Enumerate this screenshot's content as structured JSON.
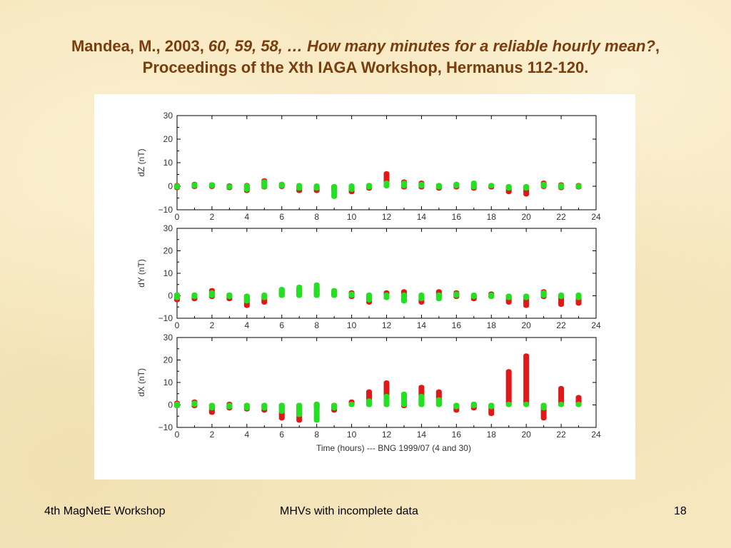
{
  "title": {
    "line1_prefix": "Mandea, M., 2003, ",
    "line1_italic": "60, 59, 58, … How many minutes for a reliable hourly mean?",
    "line1_suffix": ",",
    "line2": "Proceedings of the Xth IAGA Workshop, Hermanus 112-120."
  },
  "footer": {
    "left": "4th MagNetE Workshop",
    "center": "MHVs with incomplete data",
    "right": "18"
  },
  "colors": {
    "red_series": "#e01818",
    "green_series": "#22e022",
    "title": "#7a3d0e",
    "background": "#f6e7bf"
  },
  "chart_data": [
    {
      "type": "scatter",
      "ylabel": "dZ (nT)",
      "xlabel": "",
      "xlim": [
        0,
        24
      ],
      "ylim": [
        -10,
        30
      ],
      "xticks": [
        0,
        2,
        4,
        6,
        8,
        10,
        12,
        14,
        16,
        18,
        20,
        22,
        24
      ],
      "yticks": [
        -10,
        0,
        10,
        20,
        30
      ],
      "grid": false,
      "series": [
        {
          "color": "red",
          "x": [
            0,
            1,
            2,
            3,
            4,
            5,
            6,
            7,
            8,
            9,
            10,
            11,
            12,
            13,
            14,
            15,
            16,
            17,
            18,
            19,
            20,
            21,
            22,
            23
          ],
          "ranges": [
            [
              -0.8,
              0.5
            ],
            [
              -0.3,
              1.0
            ],
            [
              -0.3,
              0.8
            ],
            [
              -0.8,
              0.3
            ],
            [
              -2.0,
              0.5
            ],
            [
              -0.5,
              2.5
            ],
            [
              -0.3,
              1.0
            ],
            [
              -2.0,
              0.0
            ],
            [
              -2.0,
              0.0
            ],
            [
              -1.5,
              0.0
            ],
            [
              -2.5,
              0.0
            ],
            [
              -1.0,
              0.5
            ],
            [
              0.0,
              5.5
            ],
            [
              -0.5,
              2.0
            ],
            [
              -0.5,
              1.5
            ],
            [
              -1.0,
              0.5
            ],
            [
              -0.5,
              1.0
            ],
            [
              -1.0,
              0.5
            ],
            [
              -0.5,
              0.5
            ],
            [
              -2.5,
              0.0
            ],
            [
              -3.5,
              0.0
            ],
            [
              -0.3,
              1.5
            ],
            [
              -0.8,
              0.8
            ],
            [
              -0.5,
              0.5
            ]
          ]
        },
        {
          "color": "green",
          "x": [
            0,
            1,
            2,
            3,
            4,
            5,
            6,
            7,
            8,
            9,
            10,
            11,
            12,
            13,
            14,
            15,
            16,
            17,
            18,
            19,
            20,
            21,
            22,
            23
          ],
          "ranges": [
            [
              -0.5,
              0.3
            ],
            [
              0.0,
              0.8
            ],
            [
              0.0,
              0.8
            ],
            [
              -0.5,
              0.0
            ],
            [
              -1.5,
              0.3
            ],
            [
              -0.3,
              2.0
            ],
            [
              0.0,
              1.0
            ],
            [
              -1.0,
              0.5
            ],
            [
              -1.0,
              0.3
            ],
            [
              -4.5,
              0.0
            ],
            [
              -1.5,
              0.3
            ],
            [
              -0.5,
              0.5
            ],
            [
              0.0,
              1.5
            ],
            [
              0.0,
              1.5
            ],
            [
              0.0,
              1.0
            ],
            [
              -0.5,
              0.5
            ],
            [
              0.0,
              1.0
            ],
            [
              -0.5,
              1.5
            ],
            [
              0.0,
              0.5
            ],
            [
              -1.0,
              0.0
            ],
            [
              -1.0,
              0.0
            ],
            [
              0.0,
              1.0
            ],
            [
              -0.5,
              0.5
            ],
            [
              -0.3,
              0.3
            ]
          ]
        }
      ]
    },
    {
      "type": "scatter",
      "ylabel": "dY (nT)",
      "xlabel": "",
      "xlim": [
        0,
        24
      ],
      "ylim": [
        -10,
        30
      ],
      "xticks": [
        0,
        2,
        4,
        6,
        8,
        10,
        12,
        14,
        16,
        18,
        20,
        22,
        24
      ],
      "yticks": [
        -10,
        0,
        10,
        20,
        30
      ],
      "grid": false,
      "series": [
        {
          "color": "red",
          "x": [
            0,
            1,
            2,
            3,
            4,
            5,
            6,
            7,
            8,
            9,
            10,
            11,
            12,
            13,
            14,
            15,
            16,
            17,
            18,
            19,
            20,
            21,
            22,
            23
          ],
          "ranges": [
            [
              -2.0,
              0.5
            ],
            [
              -1.5,
              0.5
            ],
            [
              -0.5,
              2.5
            ],
            [
              -1.5,
              0.5
            ],
            [
              -4.5,
              0.0
            ],
            [
              -3.0,
              0.0
            ],
            [
              0.0,
              2.5
            ],
            [
              0.0,
              3.0
            ],
            [
              0.0,
              3.5
            ],
            [
              0.0,
              2.0
            ],
            [
              -0.5,
              1.5
            ],
            [
              -3.0,
              0.0
            ],
            [
              -0.5,
              1.5
            ],
            [
              -0.5,
              2.0
            ],
            [
              -3.0,
              0.0
            ],
            [
              -0.5,
              2.0
            ],
            [
              -0.5,
              1.5
            ],
            [
              -1.5,
              0.0
            ],
            [
              -0.5,
              1.0
            ],
            [
              -3.0,
              0.0
            ],
            [
              -4.5,
              0.0
            ],
            [
              -0.5,
              2.0
            ],
            [
              -4.0,
              0.0
            ],
            [
              -3.5,
              0.0
            ]
          ]
        },
        {
          "color": "green",
          "x": [
            0,
            1,
            2,
            3,
            4,
            5,
            6,
            7,
            8,
            9,
            10,
            11,
            12,
            13,
            14,
            15,
            16,
            17,
            18,
            19,
            20,
            21,
            22,
            23
          ],
          "ranges": [
            [
              -1.0,
              0.5
            ],
            [
              -0.5,
              0.5
            ],
            [
              0.0,
              1.5
            ],
            [
              -0.5,
              0.5
            ],
            [
              -2.5,
              0.0
            ],
            [
              -1.0,
              0.5
            ],
            [
              0.0,
              3.0
            ],
            [
              0.0,
              4.0
            ],
            [
              0.0,
              5.0
            ],
            [
              0.0,
              2.5
            ],
            [
              0.0,
              1.0
            ],
            [
              -2.0,
              0.5
            ],
            [
              -1.0,
              0.5
            ],
            [
              -2.5,
              0.5
            ],
            [
              -1.5,
              0.5
            ],
            [
              -1.5,
              0.5
            ],
            [
              0.0,
              1.0
            ],
            [
              -0.5,
              0.5
            ],
            [
              -0.5,
              0.5
            ],
            [
              -1.0,
              0.0
            ],
            [
              -1.0,
              0.0
            ],
            [
              0.0,
              1.5
            ],
            [
              -0.5,
              0.5
            ],
            [
              -1.0,
              0.5
            ]
          ]
        }
      ]
    },
    {
      "type": "scatter",
      "ylabel": "dX (nT)",
      "xlabel": "Time (hours) --- BNG 1999/07 (4 and 30)",
      "xlim": [
        0,
        24
      ],
      "ylim": [
        -10,
        30
      ],
      "xticks": [
        0,
        2,
        4,
        6,
        8,
        10,
        12,
        14,
        16,
        18,
        20,
        22,
        24
      ],
      "yticks": [
        -10,
        0,
        10,
        20,
        30
      ],
      "grid": false,
      "series": [
        {
          "color": "red",
          "x": [
            0,
            1,
            2,
            3,
            4,
            5,
            6,
            7,
            8,
            9,
            10,
            11,
            12,
            13,
            14,
            15,
            16,
            17,
            18,
            19,
            20,
            21,
            22,
            23
          ],
          "ranges": [
            [
              -0.5,
              1.0
            ],
            [
              -0.5,
              1.5
            ],
            [
              -3.5,
              0.0
            ],
            [
              -1.5,
              0.5
            ],
            [
              -2.0,
              0.0
            ],
            [
              -2.5,
              0.0
            ],
            [
              -6.0,
              0.0
            ],
            [
              -7.0,
              0.0
            ],
            [
              -1.0,
              0.5
            ],
            [
              -2.5,
              0.0
            ],
            [
              0.0,
              1.5
            ],
            [
              0.0,
              6.0
            ],
            [
              0.0,
              10.0
            ],
            [
              -0.5,
              3.0
            ],
            [
              0.0,
              8.0
            ],
            [
              0.0,
              6.0
            ],
            [
              -2.5,
              0.0
            ],
            [
              -1.5,
              0.5
            ],
            [
              -4.0,
              0.0
            ],
            [
              0.0,
              15.0
            ],
            [
              0.0,
              22.0
            ],
            [
              -6.0,
              0.0
            ],
            [
              0.0,
              7.5
            ],
            [
              0.0,
              3.5
            ]
          ]
        },
        {
          "color": "green",
          "x": [
            0,
            1,
            2,
            3,
            4,
            5,
            6,
            7,
            8,
            9,
            10,
            11,
            12,
            13,
            14,
            15,
            16,
            17,
            18,
            19,
            20,
            21,
            22,
            23
          ],
          "ranges": [
            [
              -0.5,
              0.5
            ],
            [
              0.0,
              1.0
            ],
            [
              -1.5,
              0.0
            ],
            [
              -1.0,
              0.0
            ],
            [
              -1.5,
              0.0
            ],
            [
              -1.5,
              0.0
            ],
            [
              -3.0,
              0.0
            ],
            [
              -4.5,
              0.0
            ],
            [
              -7.0,
              0.5
            ],
            [
              -1.5,
              0.0
            ],
            [
              0.0,
              0.5
            ],
            [
              0.0,
              2.0
            ],
            [
              0.0,
              4.0
            ],
            [
              0.0,
              5.0
            ],
            [
              0.0,
              4.0
            ],
            [
              0.0,
              2.5
            ],
            [
              -1.0,
              0.0
            ],
            [
              -0.5,
              0.5
            ],
            [
              -1.0,
              0.0
            ],
            [
              0.0,
              0.5
            ],
            [
              0.0,
              0.5
            ],
            [
              -1.5,
              0.0
            ],
            [
              0.0,
              0.5
            ],
            [
              0.0,
              0.5
            ]
          ]
        }
      ]
    }
  ]
}
